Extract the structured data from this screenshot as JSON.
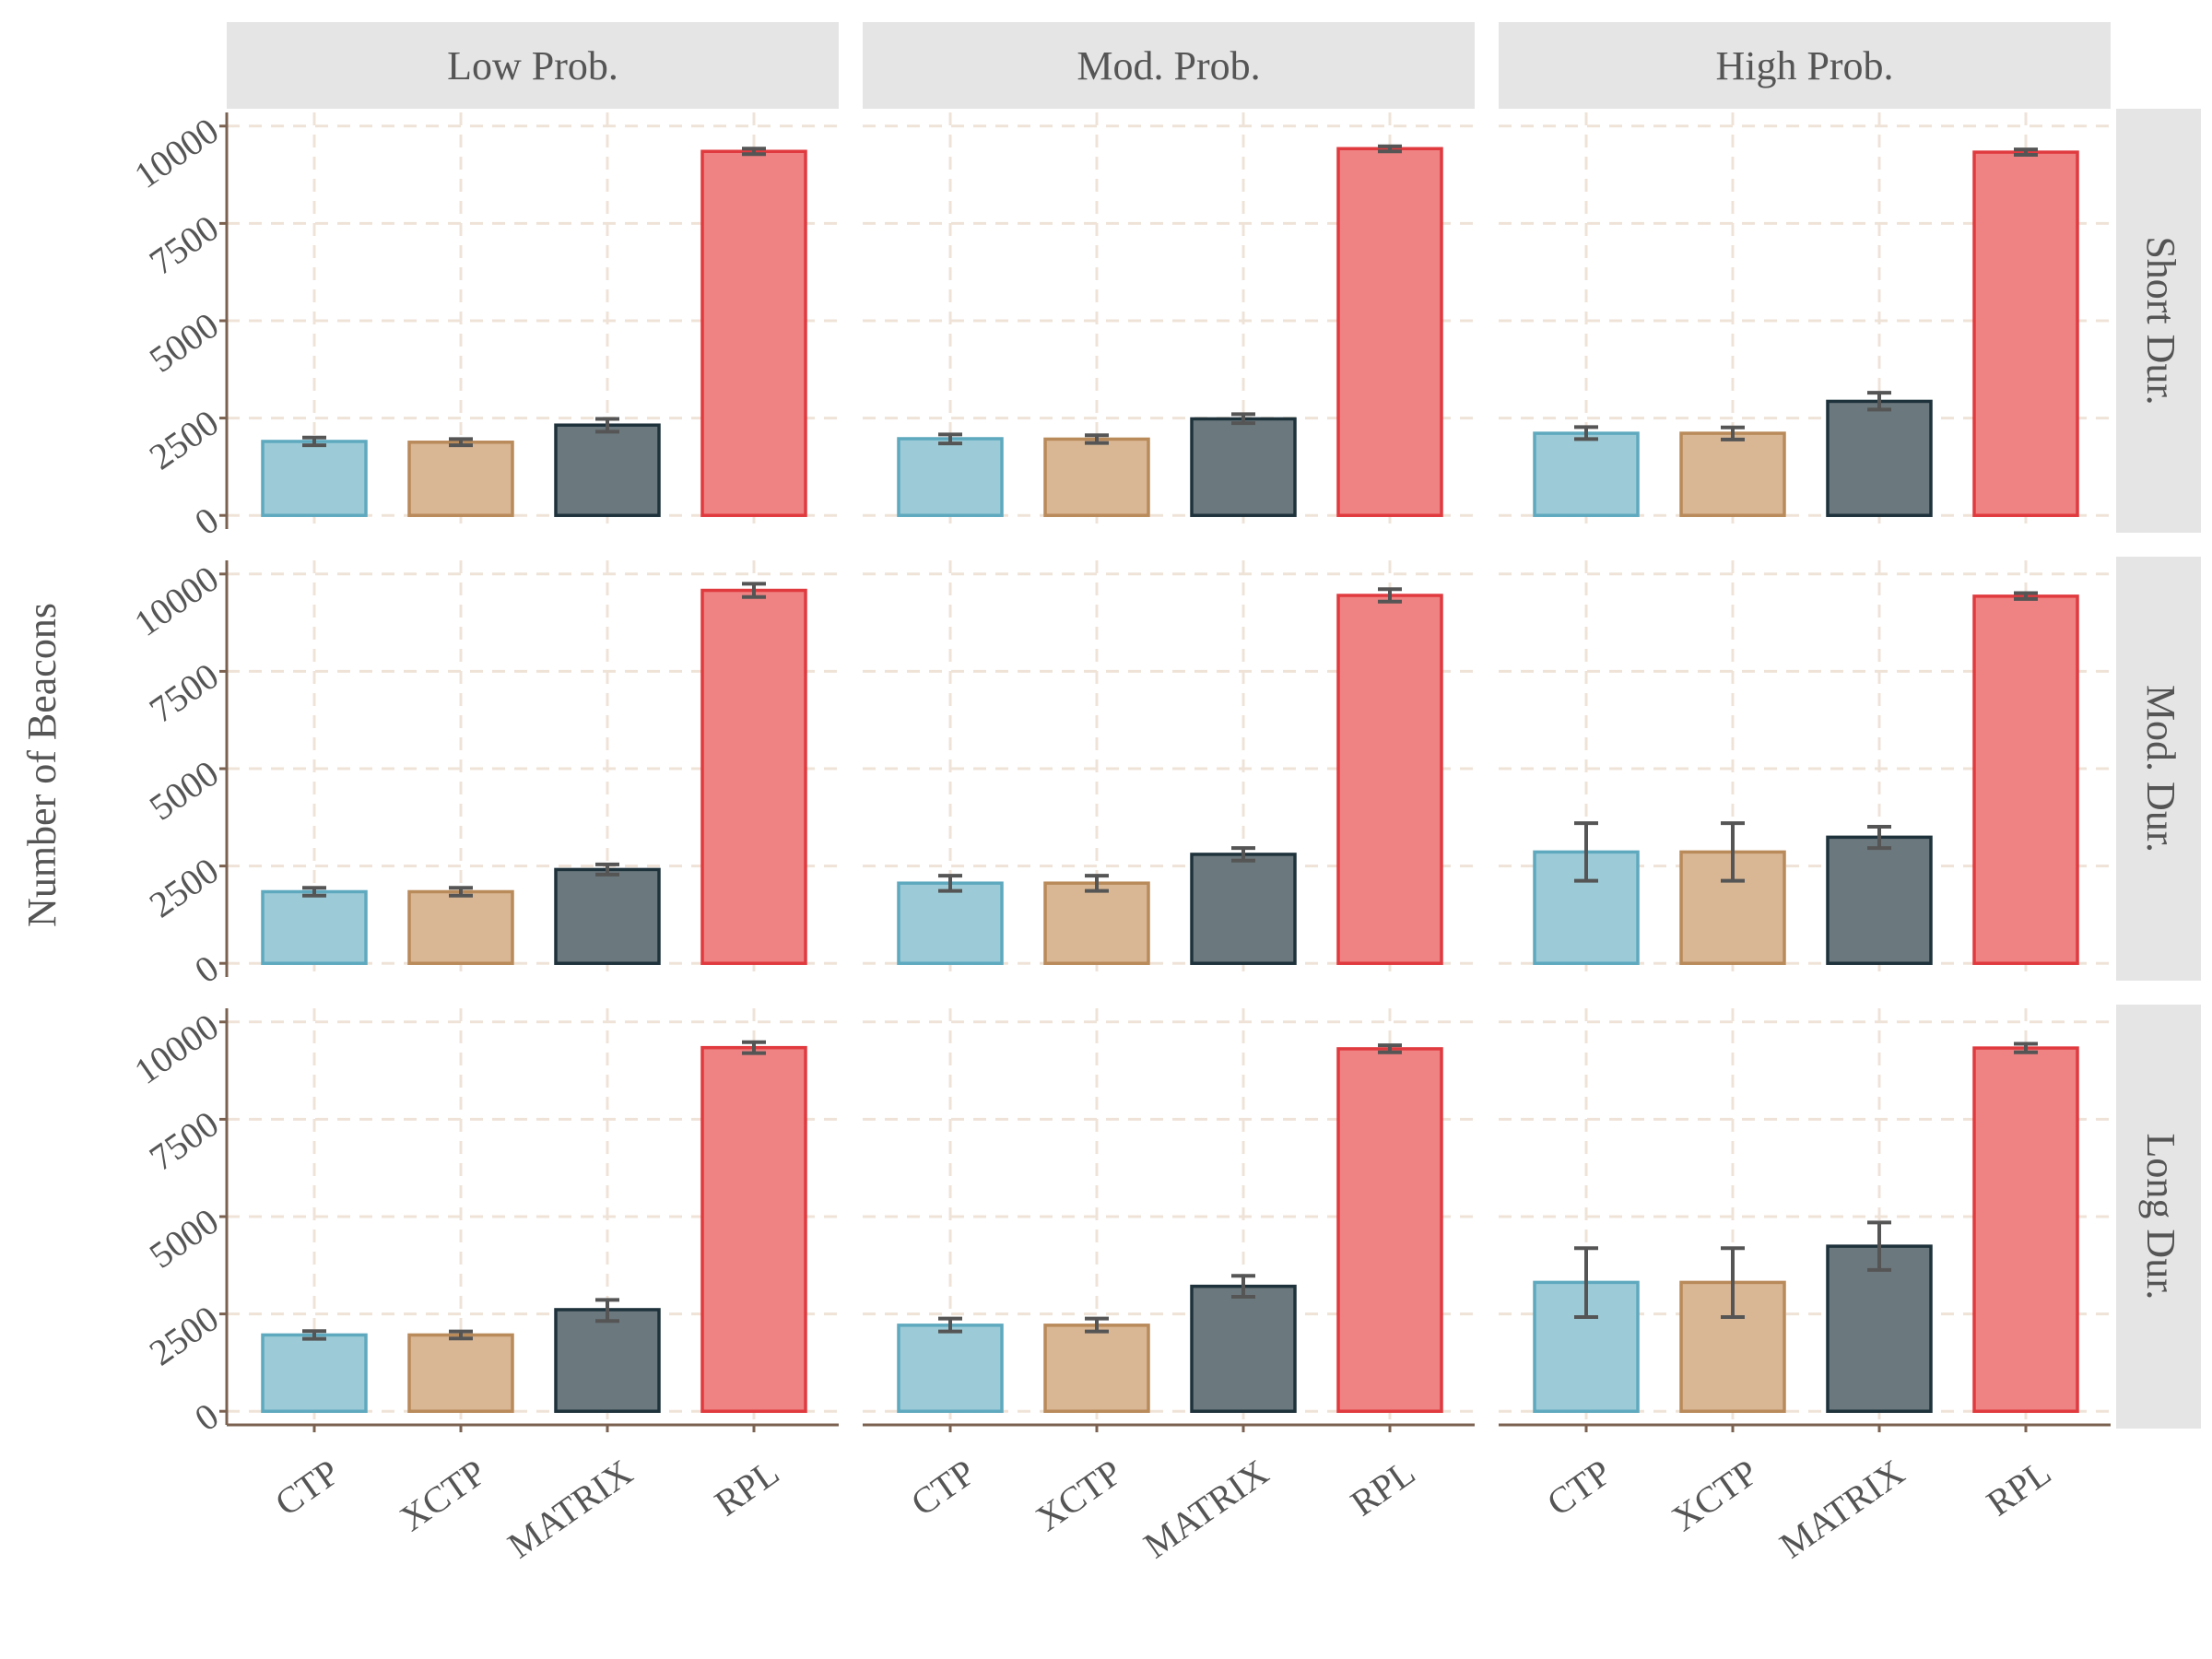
{
  "chart_data": {
    "type": "bar",
    "ylabel": "Number of Beacons",
    "xlabel": "",
    "col_facets": [
      "Low Prob.",
      "Mod. Prob.",
      "High Prob."
    ],
    "row_facets": [
      "Short Dur.",
      "Mod. Dur.",
      "Long Dur."
    ],
    "categories": [
      "CTP",
      "XCTP",
      "MATRIX",
      "RPL"
    ],
    "ylim": [
      -350,
      10350
    ],
    "yticks": [
      0,
      2500,
      5000,
      7500,
      10000
    ],
    "ytick_labels": [
      "0",
      "2500",
      "5000",
      "7500",
      "10000"
    ],
    "grid": true,
    "legend": "none",
    "colors": {
      "fills": [
        "#9ccbd7",
        "#d9b795",
        "#6b787d",
        "#ef8282"
      ],
      "strokes": [
        "#5fa9bf",
        "#b98a5a",
        "#1e323c",
        "#e03a3f"
      ],
      "error_bar": "#555555",
      "axis": "#7b6250",
      "grid": "#efe3d8",
      "strip_bg": "#e5e5e5"
    },
    "panels": [
      {
        "row": "Short Dur.",
        "col": "Low Prob.",
        "values": [
          1900,
          1880,
          2320,
          9350
        ],
        "errors": [
          [
            1800,
            2000
          ],
          [
            1800,
            1960
          ],
          [
            2150,
            2480
          ],
          [
            9280,
            9420
          ]
        ]
      },
      {
        "row": "Short Dur.",
        "col": "Mod. Prob.",
        "values": [
          1970,
          1960,
          2480,
          9420
        ],
        "errors": [
          [
            1850,
            2080
          ],
          [
            1860,
            2060
          ],
          [
            2370,
            2600
          ],
          [
            9350,
            9480
          ]
        ]
      },
      {
        "row": "Short Dur.",
        "col": "High Prob.",
        "values": [
          2110,
          2110,
          2930,
          9330
        ],
        "errors": [
          [
            1960,
            2270
          ],
          [
            1950,
            2260
          ],
          [
            2720,
            3150
          ],
          [
            9260,
            9400
          ]
        ]
      },
      {
        "row": "Mod. Dur.",
        "col": "Low Prob.",
        "values": [
          1840,
          1840,
          2410,
          9580
        ],
        "errors": [
          [
            1740,
            1940
          ],
          [
            1740,
            1940
          ],
          [
            2280,
            2540
          ],
          [
            9410,
            9750
          ]
        ]
      },
      {
        "row": "Mod. Dur.",
        "col": "Mod. Prob.",
        "values": [
          2060,
          2060,
          2800,
          9450
        ],
        "errors": [
          [
            1860,
            2250
          ],
          [
            1860,
            2250
          ],
          [
            2640,
            2960
          ],
          [
            9290,
            9610
          ]
        ]
      },
      {
        "row": "Mod. Dur.",
        "col": "High Prob.",
        "values": [
          2860,
          2860,
          3240,
          9430
        ],
        "errors": [
          [
            2120,
            3600
          ],
          [
            2120,
            3600
          ],
          [
            2960,
            3510
          ],
          [
            9360,
            9510
          ]
        ]
      },
      {
        "row": "Long Dur.",
        "col": "Low Prob.",
        "values": [
          1960,
          1960,
          2610,
          9340
        ],
        "errors": [
          [
            1860,
            2060
          ],
          [
            1870,
            2050
          ],
          [
            2320,
            2860
          ],
          [
            9200,
            9480
          ]
        ]
      },
      {
        "row": "Long Dur.",
        "col": "Mod. Prob.",
        "values": [
          2210,
          2210,
          3210,
          9310
        ],
        "errors": [
          [
            2050,
            2380
          ],
          [
            2050,
            2380
          ],
          [
            2940,
            3480
          ],
          [
            9220,
            9400
          ]
        ]
      },
      {
        "row": "Long Dur.",
        "col": "High Prob.",
        "values": [
          3310,
          3310,
          4240,
          9330
        ],
        "errors": [
          [
            2420,
            4190
          ],
          [
            2420,
            4190
          ],
          [
            3630,
            4850
          ],
          [
            9220,
            9440
          ]
        ]
      }
    ]
  }
}
